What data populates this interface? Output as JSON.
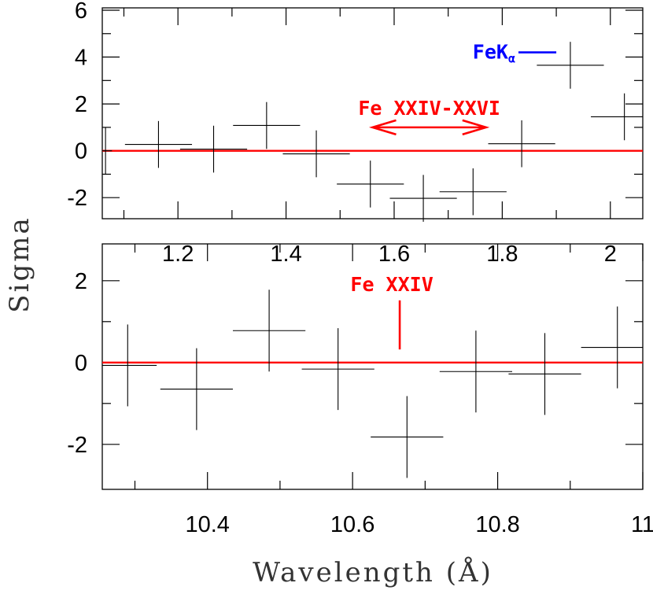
{
  "chart_data": [
    {
      "type": "scatter",
      "panel": "top",
      "xlabel": "",
      "ylabel": "Sigma",
      "xlim": [
        1.06,
        2.06
      ],
      "ylim": [
        -2.9,
        6.1
      ],
      "xticks_major": [
        1.2,
        1.4,
        1.6,
        1.8,
        2.0
      ],
      "xticks_minor": [
        1.1,
        1.3,
        1.5,
        1.7,
        1.9
      ],
      "xtick_labels": [
        "1.2",
        "1.4",
        "1.6",
        "1.8",
        "2"
      ],
      "yticks_major": [
        -2,
        0,
        2,
        4,
        6
      ],
      "yticks_minor": [
        -1,
        1,
        3,
        5
      ],
      "ytick_labels": [
        "-2",
        "0",
        "2",
        "4",
        "6"
      ],
      "reference_line": {
        "y": 0,
        "color": "#ff0000"
      },
      "points": [
        {
          "x": 1.066,
          "xerr": 0.012,
          "y": 0.0,
          "yerr": 1.0
        },
        {
          "x": 1.164,
          "xerr": 0.062,
          "y": 0.27,
          "yerr": 1.0
        },
        {
          "x": 1.266,
          "xerr": 0.062,
          "y": 0.07,
          "yerr": 1.0
        },
        {
          "x": 1.364,
          "xerr": 0.062,
          "y": 1.08,
          "yerr": 1.0
        },
        {
          "x": 1.456,
          "xerr": 0.062,
          "y": -0.13,
          "yerr": 1.0
        },
        {
          "x": 1.556,
          "xerr": 0.062,
          "y": -1.42,
          "yerr": 1.0
        },
        {
          "x": 1.654,
          "xerr": 0.062,
          "y": -2.03,
          "yerr": 1.0
        },
        {
          "x": 1.746,
          "xerr": 0.062,
          "y": -1.75,
          "yerr": 1.0
        },
        {
          "x": 1.836,
          "xerr": 0.062,
          "y": 0.3,
          "yerr": 1.0
        },
        {
          "x": 1.926,
          "xerr": 0.062,
          "y": 3.65,
          "yerr": 1.0
        },
        {
          "x": 2.026,
          "xerr": 0.062,
          "y": 1.45,
          "yerr": 1.0
        }
      ],
      "annotations": [
        {
          "text": "Fe XXIV-XXVI",
          "color": "#ff0000",
          "arrow": "double",
          "x_from": 1.56,
          "x_to": 1.77,
          "y": 1.0
        },
        {
          "text": "FeK",
          "subscript": "α",
          "color": "#0000ff",
          "line_x_from": 1.83,
          "line_x_to": 1.9,
          "y": 4.2
        }
      ]
    },
    {
      "type": "scatter",
      "panel": "bottom",
      "xlabel": "Wavelength (Å)",
      "ylabel": "",
      "xlim": [
        10.255,
        11.0
      ],
      "ylim": [
        -3.1,
        2.9
      ],
      "xticks_major": [
        10.4,
        10.6,
        10.8,
        11.0
      ],
      "xticks_minor": [
        10.3,
        10.5,
        10.7,
        10.9
      ],
      "xtick_labels": [
        "10.4",
        "10.6",
        "10.8",
        "11"
      ],
      "yticks_major": [
        -2,
        0,
        2
      ],
      "yticks_minor": [
        -1,
        1
      ],
      "ytick_labels": [
        "-2",
        "0",
        "2"
      ],
      "reference_line": {
        "y": 0,
        "color": "#ff0000"
      },
      "points": [
        {
          "x": 10.29,
          "xerr": 0.04,
          "y": -0.07,
          "yerr": 1.0
        },
        {
          "x": 10.385,
          "xerr": 0.05,
          "y": -0.65,
          "yerr": 1.0
        },
        {
          "x": 10.485,
          "xerr": 0.05,
          "y": 0.78,
          "yerr": 1.0
        },
        {
          "x": 10.58,
          "xerr": 0.05,
          "y": -0.16,
          "yerr": 1.0
        },
        {
          "x": 10.675,
          "xerr": 0.05,
          "y": -1.82,
          "yerr": 1.0
        },
        {
          "x": 10.77,
          "xerr": 0.05,
          "y": -0.22,
          "yerr": 1.0
        },
        {
          "x": 10.865,
          "xerr": 0.05,
          "y": -0.28,
          "yerr": 1.0
        },
        {
          "x": 10.965,
          "xerr": 0.05,
          "y": 0.37,
          "yerr": 1.0
        }
      ],
      "annotations": [
        {
          "text": "Fe XXIV",
          "color": "#ff0000",
          "marker_x": 10.665,
          "marker_y_from": 0.32,
          "marker_y_to": 1.52
        }
      ]
    }
  ]
}
